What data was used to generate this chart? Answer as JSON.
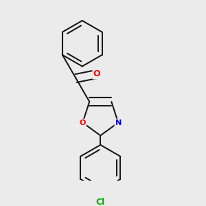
{
  "background_color": "#ebebeb",
  "bond_color": "#1a1a1a",
  "atom_colors": {
    "O_ketone": "#ff0000",
    "O_oxazole": "#ff0000",
    "N": "#0000cc",
    "Cl": "#00aa00"
  },
  "bond_width": 1.5,
  "dbo": 0.018,
  "ring_r": 0.11,
  "figsize": [
    3.0,
    3.0
  ],
  "dpi": 100
}
